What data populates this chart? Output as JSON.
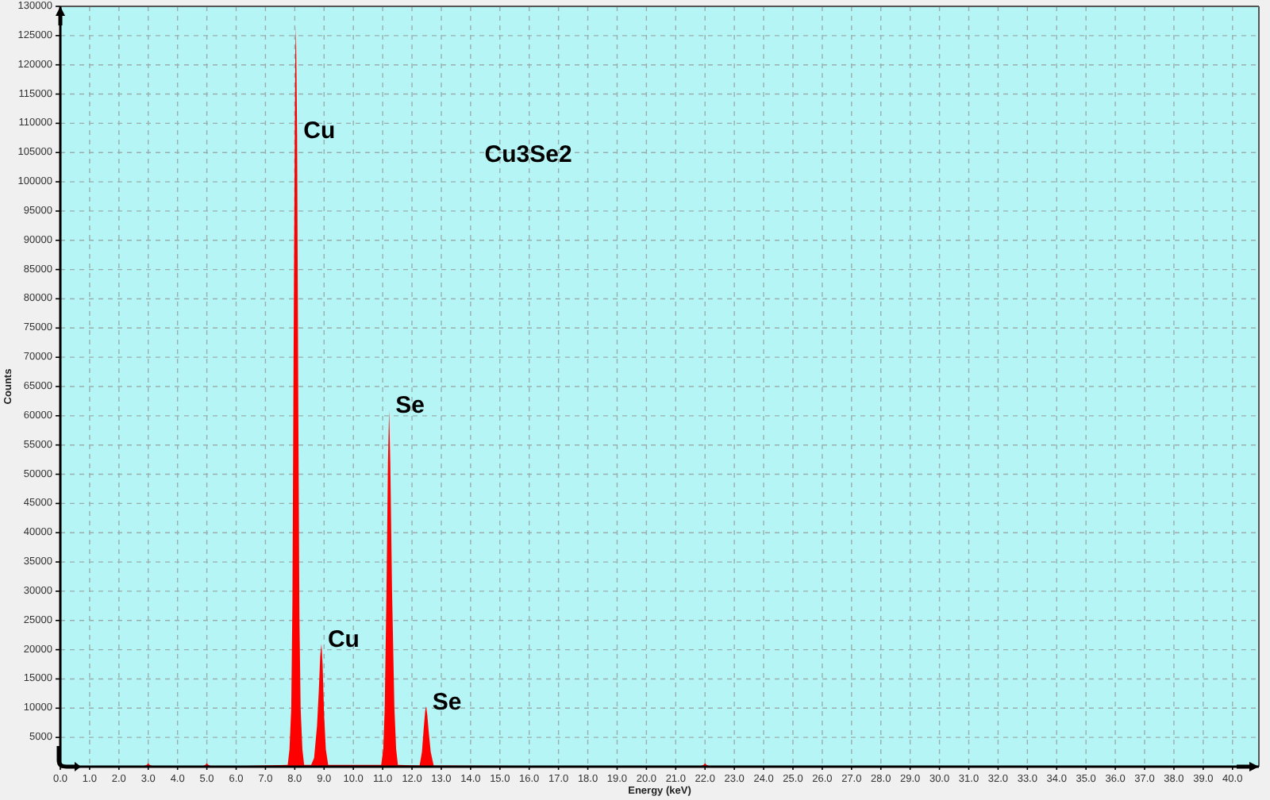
{
  "chart_data": {
    "type": "area",
    "title": "Cu3Se2",
    "xlabel": "Energy (keV)",
    "ylabel": "Counts",
    "color": "#ff0000",
    "x": [
      0,
      2.8,
      2.95,
      3.0,
      3.05,
      3.2,
      4.8,
      4.95,
      5.0,
      5.05,
      5.2,
      7.76,
      7.82,
      7.88,
      7.92,
      7.96,
      8.0,
      8.02,
      8.04,
      8.06,
      8.08,
      8.12,
      8.16,
      8.2,
      8.26,
      8.32,
      8.56,
      8.66,
      8.76,
      8.82,
      8.87,
      8.91,
      8.95,
      9.0,
      9.06,
      9.14,
      10.95,
      11.02,
      11.07,
      11.13,
      11.18,
      11.22,
      11.26,
      11.32,
      11.4,
      11.46,
      11.52,
      12.26,
      12.34,
      12.4,
      12.45,
      12.48,
      12.52,
      12.57,
      12.64,
      12.74,
      21.8,
      21.95,
      22.0,
      22.05,
      22.2,
      40.9
    ],
    "values": [
      0,
      0,
      300,
      600,
      300,
      0,
      0,
      300,
      600,
      300,
      0,
      300,
      3000,
      10000,
      28000,
      70000,
      108000,
      122000,
      126500,
      118000,
      108000,
      62000,
      25000,
      10000,
      3000,
      300,
      300,
      1500,
      7000,
      13000,
      19000,
      21000,
      17500,
      9000,
      3000,
      300,
      300,
      3000,
      10000,
      30000,
      52000,
      61000,
      52000,
      30000,
      10000,
      3000,
      300,
      200,
      2500,
      6500,
      9500,
      10300,
      9000,
      6000,
      2500,
      200,
      0,
      300,
      600,
      300,
      0,
      0
    ],
    "xlim": [
      0,
      40.9
    ],
    "ylim": [
      0,
      130000
    ],
    "xticks": [
      {
        "value": 0,
        "label": "0.0"
      },
      {
        "value": 1,
        "label": "1.0"
      },
      {
        "value": 2,
        "label": "2.0"
      },
      {
        "value": 3,
        "label": "3.0"
      },
      {
        "value": 4,
        "label": "4.0"
      },
      {
        "value": 5,
        "label": "5.0"
      },
      {
        "value": 6,
        "label": "6.0"
      },
      {
        "value": 7,
        "label": "7.0"
      },
      {
        "value": 8,
        "label": "8.0"
      },
      {
        "value": 9,
        "label": "9.0"
      },
      {
        "value": 10,
        "label": "10.0"
      },
      {
        "value": 11,
        "label": "11.0"
      },
      {
        "value": 12,
        "label": "12.0"
      },
      {
        "value": 13,
        "label": "13.0"
      },
      {
        "value": 14,
        "label": "14.0"
      },
      {
        "value": 15,
        "label": "15.0"
      },
      {
        "value": 16,
        "label": "16.0"
      },
      {
        "value": 17,
        "label": "17.0"
      },
      {
        "value": 18,
        "label": "18.0"
      },
      {
        "value": 19,
        "label": "19.0"
      },
      {
        "value": 20,
        "label": "20.0"
      },
      {
        "value": 21,
        "label": "21.0"
      },
      {
        "value": 22,
        "label": "22.0"
      },
      {
        "value": 23,
        "label": "23.0"
      },
      {
        "value": 24,
        "label": "24.0"
      },
      {
        "value": 25,
        "label": "25.0"
      },
      {
        "value": 26,
        "label": "26.0"
      },
      {
        "value": 27,
        "label": "27.0"
      },
      {
        "value": 28,
        "label": "28.0"
      },
      {
        "value": 29,
        "label": "29.0"
      },
      {
        "value": 30,
        "label": "30.0"
      },
      {
        "value": 31,
        "label": "31.0"
      },
      {
        "value": 32,
        "label": "32.0"
      },
      {
        "value": 33,
        "label": "33.0"
      },
      {
        "value": 34,
        "label": "34.0"
      },
      {
        "value": 35,
        "label": "35.0"
      },
      {
        "value": 36,
        "label": "36.0"
      },
      {
        "value": 37,
        "label": "37.0"
      },
      {
        "value": 38,
        "label": "38.0"
      },
      {
        "value": 39,
        "label": "39.0"
      },
      {
        "value": 40,
        "label": "40.0"
      }
    ],
    "yticks": [
      5000,
      10000,
      15000,
      20000,
      25000,
      30000,
      35000,
      40000,
      45000,
      50000,
      55000,
      60000,
      65000,
      70000,
      75000,
      80000,
      85000,
      90000,
      95000,
      100000,
      105000,
      110000,
      115000,
      120000,
      125000,
      130000
    ],
    "grid": true,
    "annotations": [
      {
        "text": "Cu",
        "x": 8.08,
        "y": 108000
      },
      {
        "text": "Cu",
        "x": 8.91,
        "y": 21000
      },
      {
        "text": "Se",
        "x": 11.22,
        "y": 61000
      },
      {
        "text": "Se",
        "x": 12.48,
        "y": 10300
      }
    ]
  }
}
